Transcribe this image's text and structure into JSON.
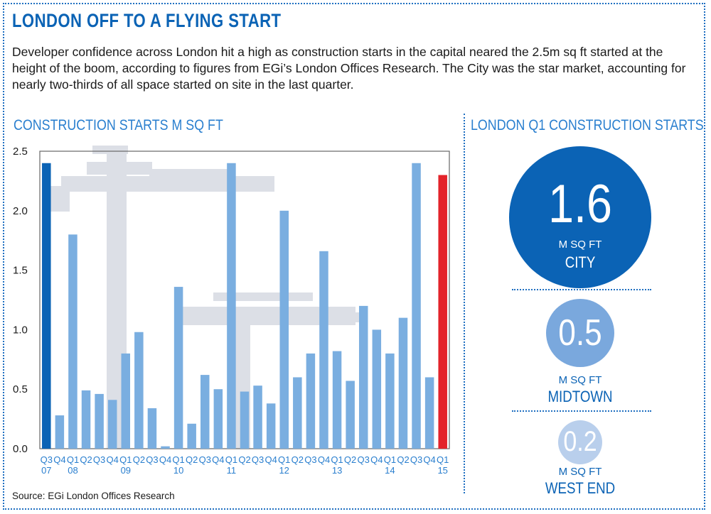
{
  "title": "LONDON OFF TO A FLYING START",
  "intro": "Developer confidence across London hit a high as construction starts in the capital neared the 2.5m sq ft started at the height of the boom, according to figures from EGi’s London Offices Research. The City was the star market, accounting for nearly two-thirds of all space started on site in the last quarter.",
  "source": "Source: EGi London Offices Research",
  "colors": {
    "accent": "#0b63b5",
    "bar": "#7aaee0",
    "first_bar": "#0b63b5",
    "last_bar": "#e3232a",
    "city": "#0b63b5",
    "midtown": "#7aa8dd",
    "west_end": "#b9cfec"
  },
  "chart_data": {
    "type": "bar",
    "title": "CONSTRUCTION STARTS M SQ FT",
    "ylim": [
      0,
      2.5
    ],
    "yticks": [
      "0.0",
      "0.5",
      "1.0",
      "1.5",
      "2.0",
      "2.5"
    ],
    "grid": false,
    "categories": [
      "Q3 07",
      "Q4",
      "Q1 08",
      "Q2",
      "Q3",
      "Q4",
      "Q1 09",
      "Q2",
      "Q3",
      "Q4",
      "Q1 10",
      "Q2",
      "Q3",
      "Q4",
      "Q1 11",
      "Q2",
      "Q3",
      "Q4",
      "Q1 12",
      "Q2",
      "Q3",
      "Q4",
      "Q1 13",
      "Q2",
      "Q3",
      "Q4",
      "Q1 14",
      "Q2",
      "Q3",
      "Q4",
      "Q1 15"
    ],
    "tick_labels": [
      [
        "Q3",
        "07"
      ],
      [
        "Q4",
        ""
      ],
      [
        "Q1",
        "08"
      ],
      [
        "Q2",
        ""
      ],
      [
        "Q3",
        ""
      ],
      [
        "Q4",
        ""
      ],
      [
        "Q1",
        "09"
      ],
      [
        "Q2",
        ""
      ],
      [
        "Q3",
        ""
      ],
      [
        "Q4",
        ""
      ],
      [
        "Q1",
        "10"
      ],
      [
        "Q2",
        ""
      ],
      [
        "Q3",
        ""
      ],
      [
        "Q4",
        ""
      ],
      [
        "Q1",
        "11"
      ],
      [
        "Q2",
        ""
      ],
      [
        "Q3",
        ""
      ],
      [
        "Q4",
        ""
      ],
      [
        "Q1",
        "12"
      ],
      [
        "Q2",
        ""
      ],
      [
        "Q3",
        ""
      ],
      [
        "Q4",
        ""
      ],
      [
        "Q1",
        "13"
      ],
      [
        "Q2",
        ""
      ],
      [
        "Q3",
        ""
      ],
      [
        "Q4",
        ""
      ],
      [
        "Q1",
        "14"
      ],
      [
        "Q2",
        ""
      ],
      [
        "Q3",
        ""
      ],
      [
        "Q4",
        ""
      ],
      [
        "Q1",
        "15"
      ]
    ],
    "values": [
      2.4,
      0.28,
      1.8,
      0.49,
      0.46,
      0.41,
      0.8,
      0.98,
      0.34,
      0.02,
      1.36,
      0.21,
      0.62,
      0.5,
      2.4,
      0.48,
      0.53,
      0.38,
      2.0,
      0.6,
      0.8,
      1.66,
      0.82,
      0.57,
      1.2,
      1.0,
      0.8,
      1.1,
      2.4,
      0.6,
      2.3
    ]
  },
  "side": {
    "title": "LONDON Q1 CONSTRUCTION STARTS",
    "city": {
      "value": "1.6",
      "unit": "M SQ FT",
      "name": "CITY"
    },
    "midtown": {
      "value": "0.5",
      "unit": "M SQ FT",
      "name": "MIDTOWN"
    },
    "west_end": {
      "value": "0.2",
      "unit": "M SQ FT",
      "name": "WEST END"
    }
  }
}
